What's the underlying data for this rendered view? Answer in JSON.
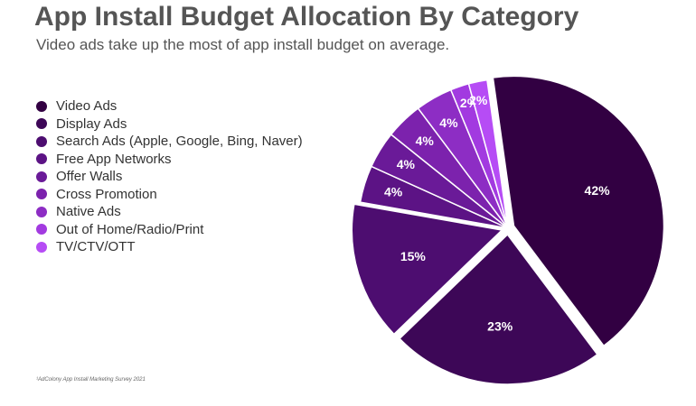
{
  "title": "App Install Budget Allocation By Category",
  "subtitle": "Video ads take up the most of app install budget on average.",
  "source": "¹AdColony App Install Marketing Survey 2021",
  "chart_data": {
    "type": "pie",
    "title": "App Install Budget Allocation By Category",
    "subtitle": "Video ads take up the most of app install budget on average.",
    "legend_position": "left",
    "series": [
      {
        "name": "Video Ads",
        "value": 42,
        "label": "42%",
        "color": "#320042"
      },
      {
        "name": "Display Ads",
        "value": 23,
        "label": "23%",
        "color": "#3d0757"
      },
      {
        "name": "Search Ads (Apple, Google, Bing, Naver)",
        "value": 15,
        "label": "15%",
        "color": "#4d0d70"
      },
      {
        "name": "Free App Networks",
        "value": 4,
        "label": "4%",
        "color": "#5c1385"
      },
      {
        "name": "Offer Walls",
        "value": 4,
        "label": "4%",
        "color": "#6a1a98"
      },
      {
        "name": "Cross Promotion",
        "value": 4,
        "label": "4%",
        "color": "#7c22ad"
      },
      {
        "name": "Native Ads",
        "value": 4,
        "label": "4%",
        "color": "#8d2dc4"
      },
      {
        "name": "Out of Home/Radio/Print",
        "value": 2,
        "label": "2%",
        "color": "#a23ae0"
      },
      {
        "name": "TV/CTV/OTT",
        "value": 2,
        "label": "2%",
        "color": "#b64cf5"
      }
    ]
  }
}
